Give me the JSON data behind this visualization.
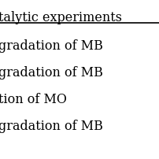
{
  "title": "talytic experiments",
  "rows": [
    "gradation of MB",
    "gradation of MB",
    "tion of MO",
    "gradation of MB"
  ],
  "bg_color": "#ffffff",
  "text_color": "#000000",
  "header_line_color": "#000000",
  "font_size": 11.5,
  "title_font_size": 11.5,
  "fig_width": 2.03,
  "fig_height": 2.03,
  "dpi": 100
}
